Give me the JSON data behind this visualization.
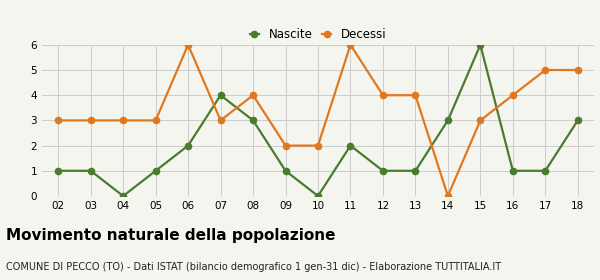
{
  "years": [
    "02",
    "03",
    "04",
    "05",
    "06",
    "07",
    "08",
    "09",
    "10",
    "11",
    "12",
    "13",
    "14",
    "15",
    "16",
    "17",
    "18"
  ],
  "nascite": [
    1,
    1,
    0,
    1,
    2,
    4,
    3,
    1,
    0,
    2,
    1,
    1,
    3,
    6,
    1,
    1,
    3
  ],
  "decessi": [
    3,
    3,
    3,
    3,
    6,
    3,
    4,
    2,
    2,
    6,
    4,
    4,
    0,
    3,
    4,
    5,
    5
  ],
  "nascite_color": "#4a7c2f",
  "decessi_color": "#e07820",
  "nascite_label": "Nascite",
  "decessi_label": "Decessi",
  "ylim": [
    0,
    6
  ],
  "yticks": [
    0,
    1,
    2,
    3,
    4,
    5,
    6
  ],
  "title": "Movimento naturale della popolazione",
  "subtitle": "COMUNE DI PECCO (TO) - Dati ISTAT (bilancio demografico 1 gen-31 dic) - Elaborazione TUTTITALIA.IT",
  "title_fontsize": 11,
  "subtitle_fontsize": 7,
  "bg_color": "#f5f5f0",
  "grid_color": "#cccccc",
  "linewidth": 1.6,
  "markersize": 4.5
}
